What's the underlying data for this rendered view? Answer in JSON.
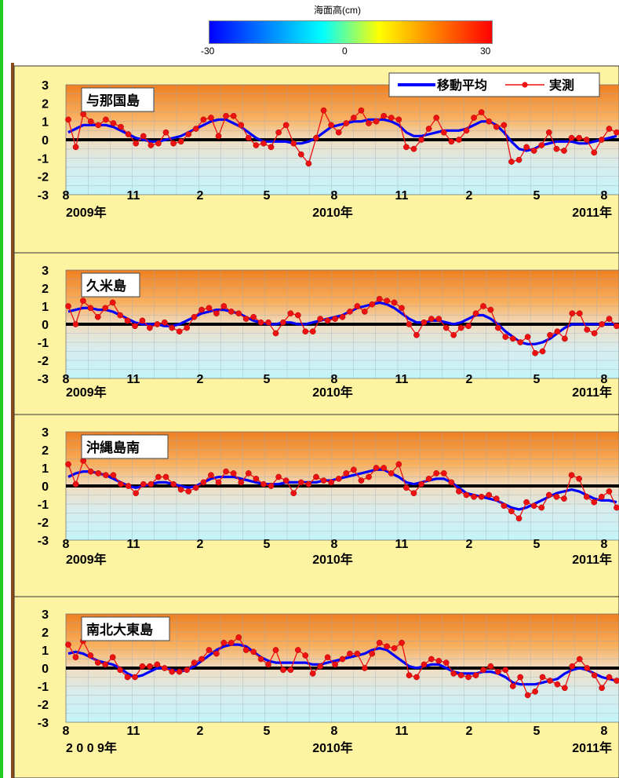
{
  "colorbar": {
    "title": "海面高(cm)",
    "ticks": [
      "-30",
      "0",
      "30"
    ],
    "colors": [
      "#0000ff",
      "#0080ff",
      "#00ffff",
      "#ffff00",
      "#ff8000",
      "#ff0000"
    ]
  },
  "legend": {
    "moving_avg": "移動平均",
    "observed": "実測"
  },
  "colors": {
    "moving_avg": "#0000ff",
    "observed": "#ee1111",
    "panel_bg": "#fdf3a0",
    "zero_line": "#000000"
  },
  "chart_data": [
    {
      "type": "line",
      "title": "与那国島",
      "ylim": [
        -3,
        3
      ],
      "yticks": [
        "3",
        "2",
        "1",
        "0",
        "-1",
        "-2",
        "-3"
      ],
      "xticks": [
        "8",
        "11",
        "2",
        "5",
        "8",
        "11",
        "2",
        "5",
        "8"
      ],
      "years": [
        "2009年",
        "2010年",
        "2011年"
      ],
      "series": [
        {
          "name": "実測",
          "values": [
            1.1,
            -0.4,
            1.4,
            1.0,
            0.8,
            1.1,
            0.9,
            0.7,
            0.3,
            -0.2,
            0.2,
            -0.3,
            -0.2,
            0.4,
            -0.2,
            -0.1,
            0.3,
            0.6,
            1.1,
            1.2,
            0.2,
            1.3,
            1.3,
            0.8,
            0.1,
            -0.3,
            -0.2,
            -0.4,
            0.4,
            0.8,
            -0.2,
            -0.8,
            -1.3,
            0.1,
            1.6,
            0.8,
            0.4,
            0.9,
            1.2,
            1.6,
            0.9,
            1.0,
            1.3,
            1.2,
            1.1,
            -0.4,
            -0.5,
            0.0,
            0.6,
            1.2,
            0.4,
            -0.1,
            0.0,
            0.5,
            1.2,
            1.5,
            1.0,
            0.7,
            0.8,
            -1.2,
            -1.1,
            -0.4,
            -0.6,
            -0.3,
            0.4,
            -0.5,
            -0.6,
            0.1,
            0.1,
            0.0,
            -0.7,
            0.0,
            0.6,
            0.4
          ]
        },
        {
          "name": "移動平均",
          "values": [
            0.4,
            0.6,
            0.8,
            0.8,
            0.8,
            0.8,
            0.7,
            0.5,
            0.3,
            0.1,
            0.0,
            -0.1,
            -0.1,
            0.0,
            0.1,
            0.2,
            0.4,
            0.6,
            0.8,
            1.0,
            1.1,
            1.1,
            0.9,
            0.7,
            0.4,
            0.1,
            -0.1,
            -0.1,
            -0.1,
            -0.1,
            -0.2,
            -0.2,
            -0.1,
            0.1,
            0.4,
            0.7,
            0.8,
            0.9,
            1.0,
            1.0,
            1.1,
            1.1,
            1.1,
            1.0,
            0.8,
            0.4,
            0.2,
            0.2,
            0.3,
            0.4,
            0.5,
            0.5,
            0.5,
            0.6,
            0.8,
            1.0,
            1.0,
            0.8,
            0.4,
            -0.1,
            -0.5,
            -0.6,
            -0.5,
            -0.3,
            -0.2,
            -0.1,
            -0.1,
            -0.1,
            -0.2,
            -0.2,
            -0.1,
            0.0,
            0.1,
            0.2
          ]
        }
      ]
    },
    {
      "type": "line",
      "title": "久米島",
      "ylim": [
        -3,
        3
      ],
      "yticks": [
        "3",
        "2",
        "1",
        "0",
        "-1",
        "-2",
        "-3"
      ],
      "xticks": [
        "8",
        "11",
        "2",
        "5",
        "8",
        "11",
        "2",
        "5",
        "8"
      ],
      "years": [
        "2009年",
        "2010年",
        "2011年"
      ],
      "series": [
        {
          "name": "実測",
          "values": [
            1.0,
            0.0,
            1.3,
            0.9,
            0.4,
            0.9,
            1.2,
            0.5,
            0.2,
            -0.1,
            0.2,
            -0.2,
            0.0,
            0.1,
            -0.2,
            -0.4,
            -0.2,
            0.4,
            0.8,
            0.9,
            0.6,
            1.0,
            0.7,
            0.6,
            0.3,
            0.4,
            0.1,
            0.1,
            -0.5,
            0.1,
            0.6,
            0.5,
            -0.4,
            -0.4,
            0.3,
            0.2,
            0.3,
            0.4,
            0.7,
            1.0,
            0.7,
            1.1,
            1.4,
            1.3,
            1.2,
            0.9,
            0.0,
            -0.6,
            0.1,
            0.3,
            0.3,
            -0.2,
            -0.6,
            -0.2,
            -0.1,
            0.6,
            1.0,
            0.8,
            -0.2,
            -0.7,
            -0.8,
            -1.0,
            -0.7,
            -1.6,
            -1.5,
            -0.6,
            -0.4,
            -0.8,
            0.6,
            0.6,
            -0.3,
            -0.5,
            0.0,
            0.3,
            -0.1
          ]
        },
        {
          "name": "移動平均",
          "values": [
            0.7,
            0.8,
            0.9,
            0.9,
            0.8,
            0.8,
            0.7,
            0.5,
            0.3,
            0.1,
            0.0,
            0.0,
            0.0,
            -0.1,
            -0.1,
            0.0,
            0.2,
            0.4,
            0.6,
            0.7,
            0.8,
            0.8,
            0.7,
            0.6,
            0.4,
            0.2,
            0.1,
            0.0,
            0.0,
            0.1,
            0.1,
            0.0,
            0.0,
            0.1,
            0.2,
            0.3,
            0.4,
            0.5,
            0.7,
            0.9,
            1.0,
            1.1,
            1.2,
            1.1,
            0.9,
            0.6,
            0.3,
            0.1,
            0.1,
            0.2,
            0.2,
            0.1,
            0.0,
            0.1,
            0.3,
            0.5,
            0.5,
            0.3,
            0.0,
            -0.4,
            -0.7,
            -1.0,
            -1.1,
            -1.1,
            -1.0,
            -0.8,
            -0.5,
            -0.2,
            0.0,
            0.0,
            0.0,
            0.0,
            0.0,
            0.0,
            0.0
          ]
        }
      ]
    },
    {
      "type": "line",
      "title": "沖縄島南",
      "ylim": [
        -3,
        3
      ],
      "yticks": [
        "3",
        "2",
        "1",
        "0",
        "-1",
        "-2",
        "-3"
      ],
      "xticks": [
        "8",
        "11",
        "2",
        "5",
        "8",
        "11",
        "2",
        "5",
        "8"
      ],
      "years": [
        "2009年",
        "2010年",
        "2011年"
      ],
      "series": [
        {
          "name": "実測",
          "values": [
            1.2,
            0.1,
            1.4,
            0.8,
            0.7,
            0.6,
            0.6,
            0.1,
            0.0,
            -0.4,
            0.1,
            0.1,
            0.5,
            0.5,
            0.1,
            -0.2,
            -0.3,
            -0.1,
            0.2,
            0.6,
            0.2,
            0.8,
            0.7,
            0.2,
            0.7,
            0.4,
            0.1,
            0.0,
            0.5,
            0.3,
            -0.4,
            0.2,
            0.1,
            0.5,
            0.3,
            0.2,
            0.4,
            0.7,
            0.9,
            0.3,
            0.5,
            1.0,
            1.0,
            0.7,
            1.2,
            -0.1,
            -0.4,
            0.1,
            0.4,
            0.7,
            0.7,
            0.2,
            -0.3,
            -0.5,
            -0.6,
            -0.6,
            -0.5,
            -0.7,
            -1.1,
            -1.4,
            -1.8,
            -0.9,
            -1.1,
            -1.2,
            -0.5,
            -0.6,
            -0.7,
            0.6,
            0.4,
            -0.6,
            -0.9,
            -0.6,
            -0.3,
            -1.2
          ]
        },
        {
          "name": "移動平均",
          "values": [
            0.5,
            0.7,
            0.8,
            0.8,
            0.7,
            0.6,
            0.4,
            0.2,
            0.0,
            -0.1,
            0.0,
            0.1,
            0.2,
            0.2,
            0.1,
            0.0,
            -0.1,
            0.0,
            0.2,
            0.4,
            0.5,
            0.5,
            0.5,
            0.4,
            0.3,
            0.2,
            0.1,
            0.1,
            0.1,
            0.2,
            0.2,
            0.2,
            0.2,
            0.2,
            0.3,
            0.3,
            0.4,
            0.5,
            0.6,
            0.7,
            0.8,
            0.9,
            0.9,
            0.7,
            0.5,
            0.2,
            0.1,
            0.2,
            0.3,
            0.4,
            0.4,
            0.2,
            -0.1,
            -0.4,
            -0.5,
            -0.6,
            -0.7,
            -0.8,
            -1.0,
            -1.2,
            -1.3,
            -1.2,
            -1.0,
            -0.8,
            -0.6,
            -0.4,
            -0.3,
            -0.2,
            -0.3,
            -0.5,
            -0.7,
            -0.8,
            -0.8,
            -0.9
          ]
        }
      ]
    },
    {
      "type": "line",
      "title": "南北大東島",
      "ylim": [
        -3,
        3
      ],
      "yticks": [
        "3",
        "2",
        "1",
        "0",
        "-1",
        "-2",
        "-3"
      ],
      "xticks": [
        "8",
        "11",
        "2",
        "5",
        "8",
        "11",
        "2",
        "5",
        "8"
      ],
      "years": [
        "2 0 0 9年",
        "2010年",
        "2011年"
      ],
      "series": [
        {
          "name": "実測",
          "values": [
            1.3,
            0.6,
            1.5,
            0.7,
            0.3,
            0.2,
            0.6,
            -0.1,
            -0.5,
            -0.5,
            0.1,
            0.1,
            0.2,
            0.0,
            -0.2,
            -0.2,
            -0.1,
            0.3,
            0.5,
            1.0,
            0.8,
            1.4,
            1.4,
            1.7,
            1.0,
            0.9,
            0.5,
            0.2,
            1.0,
            -0.1,
            -0.1,
            1.0,
            0.7,
            -0.3,
            0.1,
            0.6,
            0.2,
            0.5,
            0.8,
            0.8,
            0.0,
            0.8,
            1.4,
            1.2,
            1.1,
            1.4,
            -0.4,
            -0.5,
            0.2,
            0.5,
            0.4,
            0.3,
            -0.3,
            -0.4,
            -0.5,
            -0.4,
            -0.1,
            0.1,
            -0.2,
            -0.1,
            -1.0,
            -0.5,
            -1.5,
            -1.3,
            -0.5,
            -0.7,
            -0.9,
            -1.1,
            0.1,
            0.5,
            0.0,
            -0.4,
            -1.1,
            -0.5,
            -0.7
          ]
        },
        {
          "name": "移動平均",
          "values": [
            0.8,
            0.9,
            0.8,
            0.6,
            0.4,
            0.3,
            0.2,
            0.0,
            -0.3,
            -0.5,
            -0.4,
            -0.2,
            0.0,
            0.0,
            -0.1,
            -0.2,
            -0.1,
            0.1,
            0.4,
            0.7,
            1.0,
            1.2,
            1.3,
            1.3,
            1.2,
            0.9,
            0.6,
            0.4,
            0.3,
            0.3,
            0.3,
            0.3,
            0.3,
            0.2,
            0.2,
            0.3,
            0.4,
            0.5,
            0.6,
            0.7,
            0.8,
            1.0,
            1.1,
            1.0,
            0.7,
            0.4,
            0.1,
            0.0,
            0.1,
            0.2,
            0.2,
            0.0,
            -0.2,
            -0.3,
            -0.3,
            -0.3,
            -0.2,
            -0.2,
            -0.3,
            -0.5,
            -0.8,
            -0.9,
            -0.9,
            -0.9,
            -0.8,
            -0.7,
            -0.6,
            -0.3,
            -0.1,
            0.0,
            -0.1,
            -0.3,
            -0.5,
            -0.6,
            -0.7
          ]
        }
      ]
    }
  ]
}
